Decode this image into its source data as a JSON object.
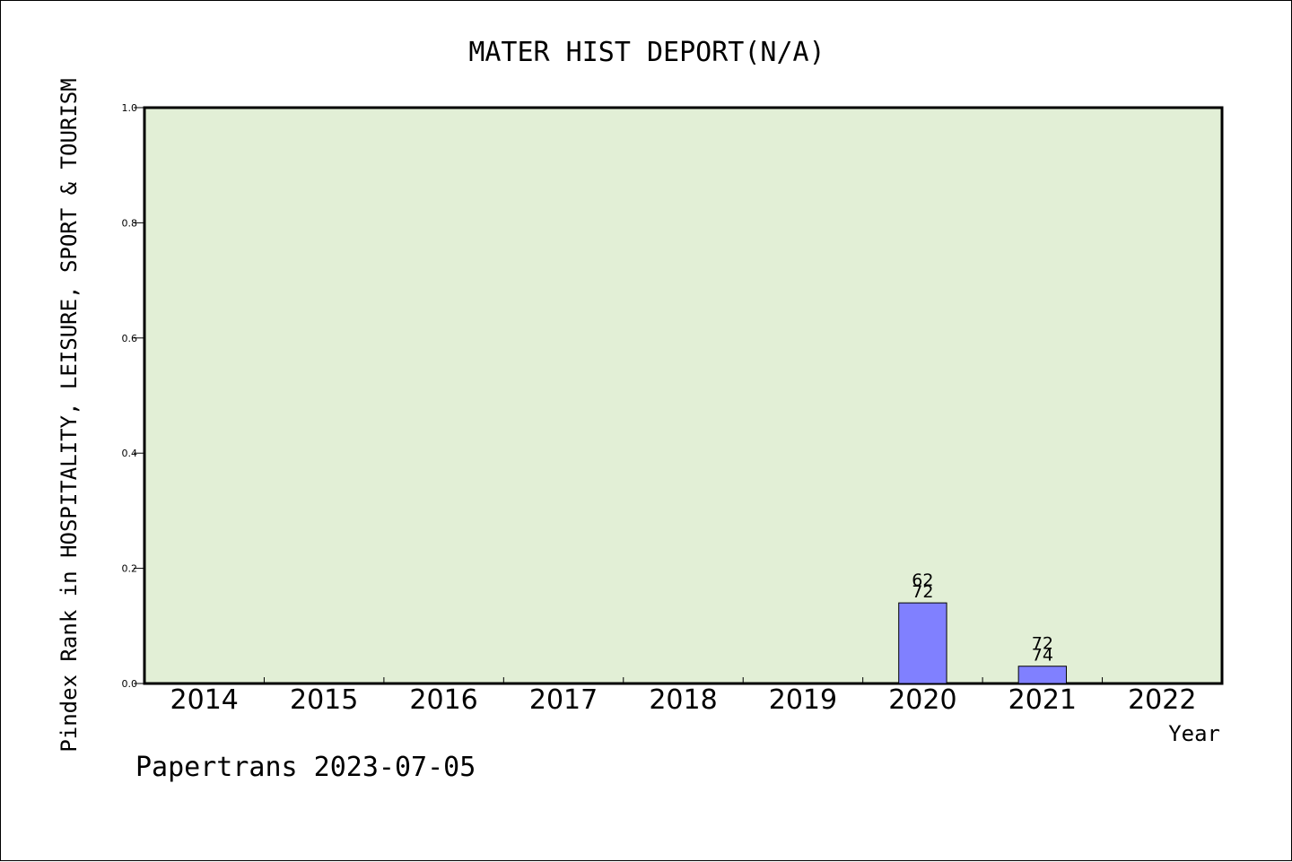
{
  "chart_data": {
    "type": "bar",
    "title": "MATER HIST DEPORT(N/A)",
    "ylabel": "Pindex Rank in HOSPITALITY, LEISURE, SPORT & TOURISM",
    "xlabel": "Year",
    "categories": [
      "2014",
      "2015",
      "2016",
      "2017",
      "2018",
      "2019",
      "2020",
      "2021",
      "2022"
    ],
    "values": [
      null,
      null,
      null,
      null,
      null,
      null,
      0.14,
      0.03,
      null
    ],
    "value_labels": [
      null,
      null,
      null,
      null,
      null,
      null,
      [
        "62",
        "72"
      ],
      [
        "72",
        "74"
      ],
      null
    ],
    "ylim": [
      0,
      1.0
    ],
    "yticks": [
      "0.0",
      "0.2",
      "0.4",
      "0.6",
      "0.8",
      "1.0"
    ],
    "ytick_values": [
      0,
      0.2,
      0.4,
      0.6,
      0.8,
      1.0
    ],
    "grid": false,
    "colors": {
      "plot_background": "#e2efd6",
      "bar_fill": "#8080ff",
      "bar_stroke": "#000000",
      "axis": "#000000"
    }
  },
  "footer": {
    "text": "Papertrans 2023-07-05"
  }
}
